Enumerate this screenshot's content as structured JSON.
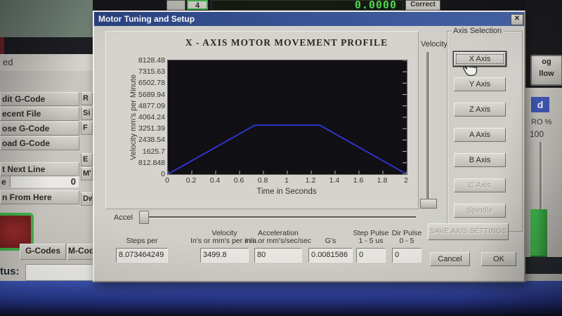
{
  "dialog": {
    "title": "Motor Tuning and Setup",
    "close_glyph": "✕",
    "velocity_slider_label": "Velocity",
    "accel_label": "Accel",
    "axis_selection_title": "Axis Selection",
    "axis_buttons": [
      {
        "label": "X Axis",
        "enabled": true,
        "focused": true
      },
      {
        "label": "Y Axis",
        "enabled": true,
        "focused": false
      },
      {
        "label": "Z Axis",
        "enabled": true,
        "focused": false
      },
      {
        "label": "A Axis",
        "enabled": true,
        "focused": false
      },
      {
        "label": "B Axis",
        "enabled": true,
        "focused": false
      },
      {
        "label": "C Axis",
        "enabled": false,
        "focused": false
      },
      {
        "label": "Spindle",
        "enabled": false,
        "focused": false
      }
    ],
    "fields": [
      {
        "label_top": "",
        "label_bottom": "Steps per",
        "value": "8.073464249"
      },
      {
        "label_top": "Velocity",
        "label_bottom": "In's or mm's per min.",
        "value": "3499.8"
      },
      {
        "label_top": "Acceleration",
        "label_bottom": "in's or mm's/sec/sec",
        "value": "80"
      },
      {
        "label_top": "",
        "label_bottom": "G's",
        "value": "0.0081586"
      },
      {
        "label_top": "Step Pulse",
        "label_bottom": "1 - 5 us",
        "value": "0"
      },
      {
        "label_top": "Dir Pulse",
        "label_bottom": "0 - 5",
        "value": "0"
      }
    ],
    "save_button": "SAVE AXIS SETTINGS",
    "cancel_button": "Cancel",
    "ok_button": "OK"
  },
  "chart_data": {
    "type": "line",
    "title": "X - AXIS MOTOR MOVEMENT PROFILE",
    "xlabel": "Time in Seconds",
    "ylabel": "Velocity mm's per Minute",
    "xlim": [
      0,
      2
    ],
    "ylim": [
      0,
      8128.48
    ],
    "xticks": [
      "0",
      "0.2",
      "0.4",
      "0.6",
      "0.8",
      "1",
      "1.2",
      "1.4",
      "1.6",
      "1.8",
      "2"
    ],
    "yticks": [
      "8128.48",
      "7315.63",
      "6502.78",
      "5689.94",
      "4877.09",
      "4064.24",
      "3251.39",
      "2438.54",
      "1625.7",
      "812.848",
      "0"
    ],
    "grid": false,
    "plot_bg": "#04040a",
    "line_color": "#2228dd",
    "legend": "none",
    "series": [
      {
        "name": "velocity-profile",
        "points": [
          [
            0,
            0
          ],
          [
            0.729,
            3499.8
          ],
          [
            1.271,
            3499.8
          ],
          [
            2,
            0
          ]
        ]
      }
    ]
  },
  "background": {
    "top_bar": {
      "tool_button": "4",
      "dro_value": "0.0000",
      "correct_button": "Correct"
    },
    "file_strip_text": "ed",
    "left_buttons": [
      "dit G-Code",
      "ecent File",
      "ose G-Code",
      "oad G-Code",
      "t Next Line",
      "n From Here"
    ],
    "line_label": "e",
    "line_value": "0",
    "sliver_buttons": [
      "R",
      "Si",
      "F",
      "E",
      "M'",
      "Dw"
    ],
    "gcodes_button": "G-Codes",
    "mcodes_button": "M-Cod",
    "status_label": "tus:",
    "right_panel": {
      "jog_button_line1": "og",
      "jog_button_line2": "llow",
      "feed_tab": "d",
      "fro_label": "RO %",
      "fro_value": "100"
    }
  },
  "colors": {
    "titlebar_blue": "#1e3a86",
    "profile_line_blue": "#2228dd",
    "dro_green": "#3ce53c",
    "override_green": "#2ecb3c",
    "reset_red": "#8c1616",
    "reset_ring_green": "#2eb93c",
    "bottom_bar_blue": "#3350c0"
  }
}
